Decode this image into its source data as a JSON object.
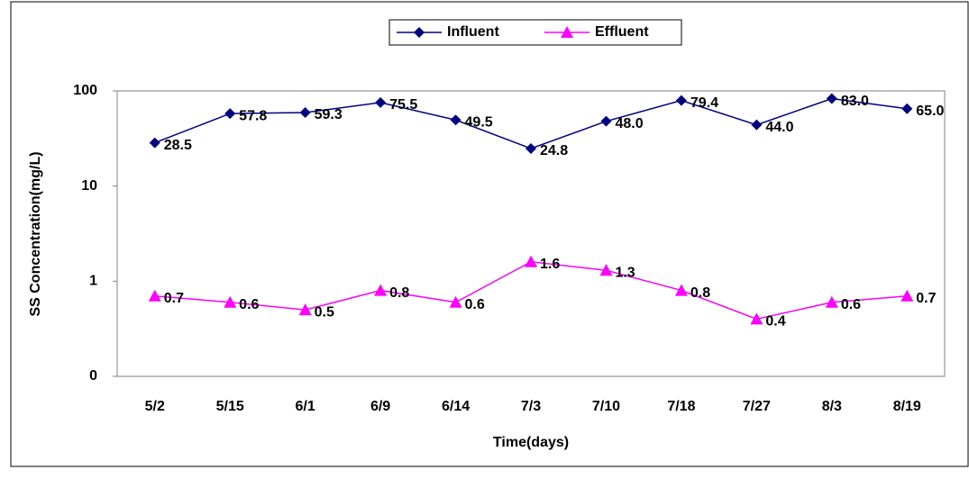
{
  "chart_data": {
    "type": "line",
    "x_label": "Time(days)",
    "y_label": "SS Concentration(mg/L)",
    "categories": [
      "5/2",
      "5/15",
      "6/1",
      "6/9",
      "6/14",
      "7/3",
      "7/10",
      "7/18",
      "7/27",
      "8/3",
      "8/19"
    ],
    "series": [
      {
        "name": "Influent",
        "color": "#000080",
        "marker": "diamond",
        "values": [
          28.5,
          57.8,
          59.3,
          75.5,
          49.5,
          24.8,
          48.0,
          79.4,
          44.0,
          83.0,
          65.0
        ],
        "value_labels": [
          "28.5",
          "57.8",
          "59.3",
          "75.5",
          "49.5",
          "24.8",
          "48.0",
          "79.4",
          "44.0",
          "83.0",
          "65.0"
        ]
      },
      {
        "name": "Effluent",
        "color": "#ff00ff",
        "marker": "triangle",
        "values": [
          0.7,
          0.6,
          0.5,
          0.8,
          0.6,
          1.6,
          1.3,
          0.8,
          0.4,
          0.6,
          0.7
        ]
      }
    ],
    "log_scale": true,
    "ylim": [
      0.1,
      100
    ],
    "yticks": [
      {
        "value": 0.1,
        "label": "0"
      },
      1,
      10,
      100
    ],
    "legend": "top"
  }
}
